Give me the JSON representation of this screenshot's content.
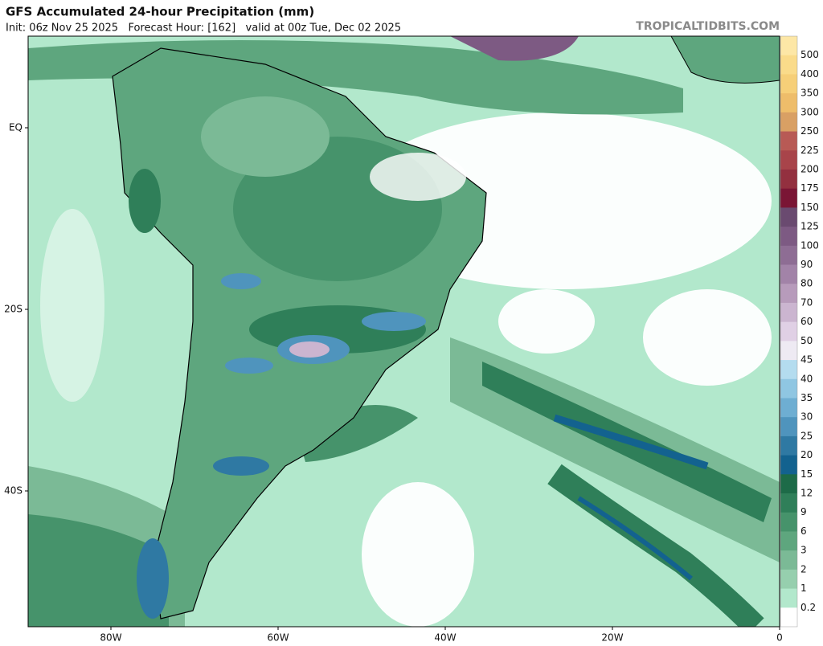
{
  "header": {
    "title": "GFS Accumulated 24-hour Precipitation (mm)",
    "subtitle": "Init: 06z Nov 25 2025   Forecast Hour: [162]   valid at 00z Tue, Dec 02 2025",
    "site": "TROPICALTIDBITS.COM"
  },
  "lon_labels": [
    "80W",
    "60W",
    "40W",
    "20W",
    "0"
  ],
  "lat_labels": [
    "EQ",
    "20S",
    "40S"
  ],
  "colorbar": {
    "labels": [
      "500",
      "400",
      "350",
      "300",
      "250",
      "225",
      "200",
      "175",
      "150",
      "125",
      "100",
      "90",
      "80",
      "70",
      "60",
      "50",
      "45",
      "40",
      "35",
      "30",
      "25",
      "20",
      "15",
      "12",
      "9",
      "6",
      "3",
      "2",
      "1",
      "0.2"
    ],
    "colors": [
      "#fde7a6",
      "#fadb8a",
      "#f6cf78",
      "#eebd6a",
      "#d9a064",
      "#b85a55",
      "#a8444a",
      "#93303f",
      "#7a1535",
      "#6a4a70",
      "#7d5a83",
      "#8e6d94",
      "#a283a8",
      "#b79bbb",
      "#cbb5d0",
      "#e0d0e5",
      "#eeeaf3",
      "#b4dcef",
      "#8fc6e2",
      "#6eaed2",
      "#4f94bd",
      "#2f79a3",
      "#13628f",
      "#1d6b48",
      "#2f7f59",
      "#46936b",
      "#5ea67e",
      "#7bba96",
      "#96cfae",
      "#b2e8cc",
      "#ffffff"
    ]
  }
}
